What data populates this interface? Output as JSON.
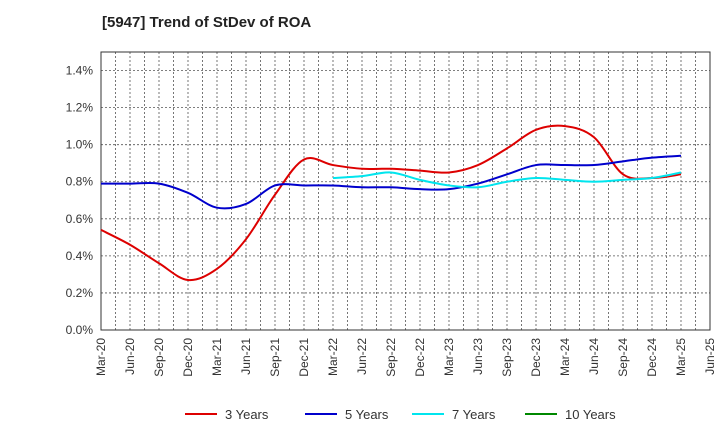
{
  "chart_data": {
    "type": "line",
    "title": "[5947]  Trend of StDev of ROA",
    "xlabel": "",
    "ylabel": "",
    "ylim": [
      0,
      0.015
    ],
    "yticks": [
      0,
      0.002,
      0.004,
      0.006,
      0.008,
      0.01,
      0.012,
      0.014
    ],
    "ytick_labels": [
      "0.0%",
      "0.2%",
      "0.4%",
      "0.6%",
      "0.8%",
      "1.0%",
      "1.2%",
      "1.4%"
    ],
    "x_categories": [
      "Mar-20",
      "Jun-20",
      "Sep-20",
      "Dec-20",
      "Mar-21",
      "Jun-21",
      "Sep-21",
      "Dec-21",
      "Mar-22",
      "Jun-22",
      "Sep-22",
      "Dec-22",
      "Mar-23",
      "Jun-23",
      "Sep-23",
      "Dec-23",
      "Mar-24",
      "Jun-24",
      "Sep-24",
      "Dec-24",
      "Mar-25",
      "Jun-25"
    ],
    "grid": true,
    "legend_position": "bottom",
    "series": [
      {
        "name": "3 Years",
        "color": "#dd0000",
        "values": [
          0.0054,
          0.0046,
          0.0036,
          0.0027,
          0.0033,
          0.0049,
          0.0073,
          0.0092,
          0.0089,
          0.0087,
          0.0087,
          0.0086,
          0.0085,
          0.0089,
          0.0098,
          0.0108,
          0.011,
          0.0104,
          0.0084,
          0.0082,
          0.0084,
          null
        ]
      },
      {
        "name": "5 Years",
        "color": "#0000cc",
        "values": [
          0.0079,
          0.0079,
          0.0079,
          0.0074,
          0.0066,
          0.0068,
          0.0078,
          0.0078,
          0.0078,
          0.0077,
          0.0077,
          0.0076,
          0.0076,
          0.0079,
          0.0084,
          0.0089,
          0.0089,
          0.0089,
          0.0091,
          0.0093,
          0.0094,
          null
        ]
      },
      {
        "name": "7 Years",
        "color": "#00e5ee",
        "values": [
          null,
          null,
          null,
          null,
          null,
          null,
          null,
          null,
          0.0082,
          0.0083,
          0.0085,
          0.0081,
          0.0078,
          0.0077,
          0.008,
          0.0082,
          0.0081,
          0.008,
          0.0081,
          0.0082,
          0.0085,
          null
        ]
      },
      {
        "name": "10 Years",
        "color": "#008800",
        "values": [
          null,
          null,
          null,
          null,
          null,
          null,
          null,
          null,
          null,
          null,
          null,
          null,
          null,
          null,
          null,
          null,
          null,
          null,
          null,
          null,
          null,
          null
        ]
      }
    ]
  }
}
